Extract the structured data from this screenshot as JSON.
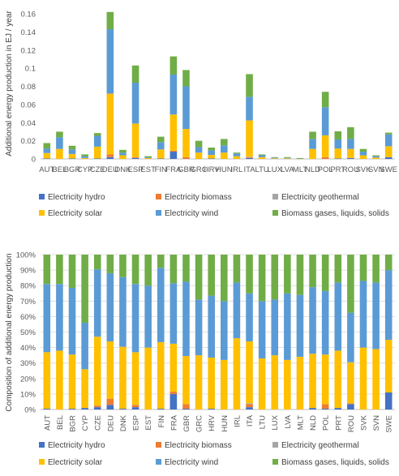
{
  "chart_data": [
    {
      "type": "bar",
      "stacked": true,
      "ylabel": "Additional energy production in EJ / year",
      "ylim": [
        0,
        0.16
      ],
      "yticks": [
        "0",
        "0.02",
        "0.04",
        "0.06",
        "0.08",
        "0.1",
        "0.12",
        "0.14",
        "0.16"
      ],
      "grid": false,
      "legend_position": "bottom",
      "categories": [
        "AUT",
        "BEL",
        "BGR",
        "CYP",
        "CZE",
        "DEU",
        "DNK",
        "ESP",
        "EST",
        "FIN",
        "FRA",
        "GBR",
        "GRC",
        "HRV",
        "HUN",
        "IRL",
        "ITA",
        "LTU",
        "LUX",
        "LVA",
        "MLT",
        "NLD",
        "POL",
        "PRT",
        "ROU",
        "SVK",
        "SVN",
        "SWE"
      ],
      "series": [
        {
          "name": "Electricity hydro",
          "color": "#4472C4",
          "values": [
            0.0005,
            0,
            0.0005,
            0,
            0.0005,
            0.002,
            0,
            0.001,
            0,
            0.0005,
            0.008,
            0,
            0,
            0.0005,
            0,
            0,
            0.001,
            0,
            0,
            0,
            0,
            0,
            0,
            0.0005,
            0.001,
            0,
            0,
            0.002
          ]
        },
        {
          "name": "Electricity biomass",
          "color": "#ED7D31",
          "values": [
            0,
            0,
            0,
            0,
            0,
            0.003,
            0,
            0.001,
            0,
            0,
            0.001,
            0.002,
            0,
            0,
            0,
            0,
            0.001,
            0,
            0,
            0,
            0,
            0,
            0.002,
            0,
            0,
            0,
            0,
            0
          ]
        },
        {
          "name": "Electricity geothermal",
          "color": "#A5A5A5",
          "values": [
            0,
            0,
            0,
            0,
            0,
            0,
            0,
            0,
            0,
            0,
            0,
            0,
            0,
            0,
            0,
            0,
            0.0005,
            0,
            0,
            0,
            0,
            0,
            0,
            0,
            0,
            0,
            0,
            0
          ]
        },
        {
          "name": "Electricity solar",
          "color": "#FFC000",
          "values": [
            0.006,
            0.011,
            0.005,
            0.001,
            0.013,
            0.067,
            0.004,
            0.037,
            0.001,
            0.01,
            0.04,
            0.031,
            0.007,
            0.004,
            0.007,
            0.003,
            0.04,
            0.002,
            0.0007,
            0.0006,
            0.0002,
            0.011,
            0.024,
            0.011,
            0.01,
            0.004,
            0.0015,
            0.012
          ]
        },
        {
          "name": "Electricity wind",
          "color": "#5B9BD5",
          "values": [
            0.005,
            0.013,
            0.005,
            0.002,
            0.012,
            0.071,
            0.003,
            0.045,
            0.0008,
            0.008,
            0.044,
            0.047,
            0.006,
            0.005,
            0.008,
            0.003,
            0.026,
            0.002,
            0.0008,
            0.0006,
            0.0002,
            0.011,
            0.031,
            0.01,
            0.011,
            0.004,
            0.0015,
            0.013
          ]
        },
        {
          "name": "Biomass gases, liquids, solids",
          "color": "#70AD47",
          "values": [
            0.006,
            0.006,
            0.004,
            0.002,
            0.003,
            0.019,
            0.003,
            0.019,
            0.0012,
            0.006,
            0.02,
            0.018,
            0.007,
            0.003,
            0.007,
            0.001,
            0.025,
            0.001,
            0.0005,
            0.0008,
            0.0006,
            0.008,
            0.017,
            0.009,
            0.013,
            0.003,
            0.001,
            0.002
          ]
        }
      ]
    },
    {
      "type": "bar",
      "stacked": true,
      "ylabel": "Composition of additional energy production",
      "ylim": [
        0,
        100
      ],
      "yticks": [
        "0%",
        "10%",
        "20%",
        "30%",
        "40%",
        "50%",
        "60%",
        "70%",
        "80%",
        "90%",
        "100%"
      ],
      "grid": true,
      "legend_position": "bottom",
      "categories": [
        "AUT",
        "BEL",
        "BGR",
        "CYP",
        "CZE",
        "DEU",
        "DNK",
        "ESP",
        "EST",
        "FIN",
        "FRA",
        "GBR",
        "GRC",
        "HRV",
        "HUN",
        "IRL",
        "ITA",
        "LTU",
        "LUX",
        "LVA",
        "MLT",
        "NLD",
        "POL",
        "PRT",
        "ROU",
        "SVK",
        "SVN",
        "SWE"
      ],
      "series": [
        {
          "name": "Electricity hydro",
          "color": "#4472C4",
          "values": [
            0.5,
            0,
            0.5,
            1,
            1.5,
            3,
            0.5,
            1.5,
            0,
            0.5,
            10,
            0.5,
            0,
            0.5,
            0,
            0,
            1.5,
            0,
            0,
            0,
            0,
            1,
            0.5,
            1,
            3.5,
            0,
            0,
            11
          ]
        },
        {
          "name": "Electricity biomass",
          "color": "#ED7D31",
          "values": [
            0,
            0,
            0,
            0,
            1,
            4,
            0,
            1.5,
            0,
            0,
            1.5,
            3,
            0,
            0,
            0,
            0,
            2,
            0,
            0,
            0,
            0,
            0,
            3,
            0,
            0.5,
            0,
            0,
            0
          ]
        },
        {
          "name": "Electricity geothermal",
          "color": "#A5A5A5",
          "values": [
            0,
            0,
            0,
            0,
            0,
            0,
            0,
            0,
            0,
            0,
            0,
            0,
            0,
            0,
            0,
            0,
            0.5,
            0,
            0,
            0,
            0,
            0,
            0,
            0,
            0,
            0,
            0,
            0
          ]
        },
        {
          "name": "Electricity solar",
          "color": "#FFC000",
          "values": [
            36.5,
            38,
            35,
            25,
            44.5,
            37,
            40,
            34,
            40,
            43,
            31,
            31,
            35,
            33,
            32,
            46,
            40,
            33,
            35,
            32,
            34,
            35,
            32,
            37,
            26.5,
            40,
            39,
            34
          ]
        },
        {
          "name": "Electricity wind",
          "color": "#5B9BD5",
          "values": [
            44,
            43,
            43,
            30,
            43.5,
            44,
            45,
            44,
            40,
            48,
            39,
            48,
            36,
            40,
            38,
            36,
            31,
            37,
            36,
            43,
            40,
            43,
            41,
            44,
            32,
            43,
            43,
            45
          ]
        },
        {
          "name": "Biomass gases, liquids, solids",
          "color": "#70AD47",
          "values": [
            19,
            19,
            21.5,
            44,
            9.5,
            12,
            14.5,
            19,
            20,
            8.5,
            18.5,
            17.5,
            29,
            26.5,
            30,
            18,
            25,
            30,
            29,
            25,
            26,
            21,
            23.5,
            18,
            37.5,
            17,
            18,
            10
          ]
        }
      ]
    }
  ]
}
